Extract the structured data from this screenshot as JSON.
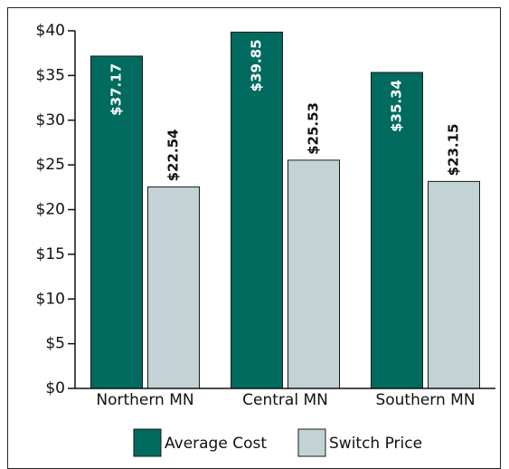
{
  "chart_data": {
    "type": "bar",
    "categories": [
      "Northern MN",
      "Central MN",
      "Southern MN"
    ],
    "series": [
      {
        "name": "Average Cost",
        "color": "#006b5e",
        "values": [
          37.17,
          39.85,
          35.34
        ],
        "value_labels": [
          "$37.17",
          "$39.85",
          "$35.34"
        ]
      },
      {
        "name": "Switch Price",
        "color": "#c3d2d4",
        "values": [
          22.54,
          25.53,
          23.15
        ],
        "value_labels": [
          "$22.54",
          "$25.53",
          "$23.15"
        ]
      }
    ],
    "ylim": [
      0,
      40
    ],
    "yticks": [
      {
        "value": 0,
        "label": "$0"
      },
      {
        "value": 5,
        "label": "$5"
      },
      {
        "value": 10,
        "label": "$10"
      },
      {
        "value": 15,
        "label": "$15"
      },
      {
        "value": 20,
        "label": "$20"
      },
      {
        "value": 25,
        "label": "$25"
      },
      {
        "value": 30,
        "label": "$30"
      },
      {
        "value": 35,
        "label": "$35"
      },
      {
        "value": 40,
        "label": "$40"
      }
    ],
    "legend": "bottom"
  }
}
